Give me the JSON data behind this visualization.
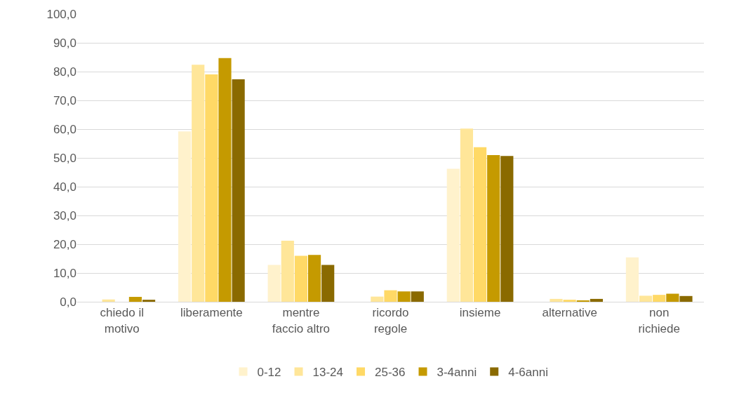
{
  "chart_data": {
    "type": "bar",
    "categories": [
      "chiedo il\nmotivo",
      "liberamente",
      "mentre\nfaccio altro",
      "ricordo\nregole",
      "insieme",
      "alternative",
      "non\nrichiede"
    ],
    "series": [
      {
        "name": "0-12",
        "color": "#fff2cc",
        "values": [
          null,
          59.2,
          12.8,
          null,
          46.2,
          null,
          15.4
        ]
      },
      {
        "name": "13-24",
        "color": "#ffe699",
        "values": [
          0.8,
          82.4,
          21.2,
          1.8,
          60.2,
          1.0,
          2.1
        ]
      },
      {
        "name": "25-36",
        "color": "#ffd966",
        "values": [
          null,
          79.0,
          16.0,
          4.0,
          53.7,
          0.7,
          2.4
        ]
      },
      {
        "name": "3-4anni",
        "color": "#c59a00",
        "values": [
          1.7,
          84.7,
          16.3,
          3.6,
          51.0,
          0.3,
          2.8
        ]
      },
      {
        "name": "4-6anni",
        "color": "#8a6a00",
        "values": [
          0.7,
          77.3,
          12.8,
          3.6,
          50.7,
          1.0,
          2.0
        ]
      }
    ],
    "ylim": [
      0,
      100
    ],
    "yticks": [
      {
        "value": 0,
        "label": "0,0"
      },
      {
        "value": 10,
        "label": "10,0"
      },
      {
        "value": 20,
        "label": "20,0"
      },
      {
        "value": 30,
        "label": "30,0"
      },
      {
        "value": 40,
        "label": "40,0"
      },
      {
        "value": 50,
        "label": "50,0"
      },
      {
        "value": 60,
        "label": "60,0"
      },
      {
        "value": 70,
        "label": "70,0"
      },
      {
        "value": 80,
        "label": "80,0"
      },
      {
        "value": 90,
        "label": "90,0"
      },
      {
        "value": 100,
        "label": "100,0"
      }
    ],
    "grid": "y",
    "legend": "bottom"
  }
}
